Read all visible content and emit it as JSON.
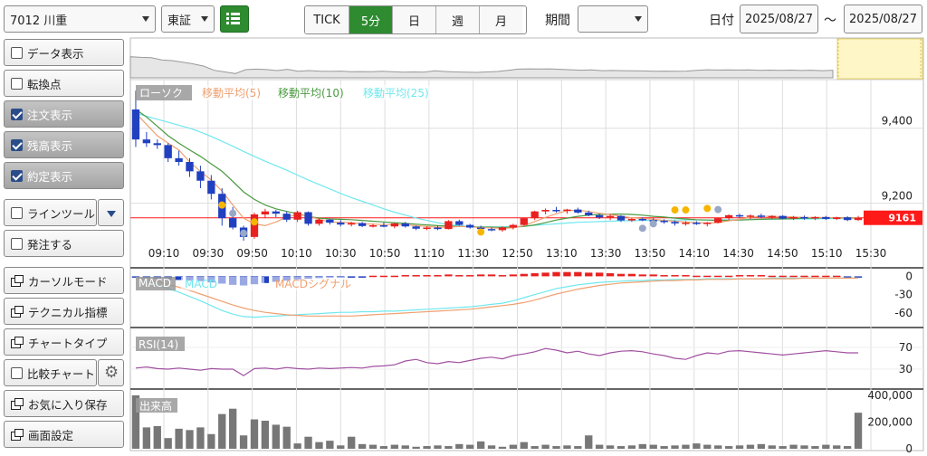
{
  "header": {
    "symbol": "7012 川重",
    "market": "東証",
    "menu_icon": "list-icon",
    "intervals": [
      "TICK",
      "5分",
      "日",
      "週",
      "月"
    ],
    "active_interval": "5分",
    "period_label": "期間",
    "period_value": "",
    "date_label": "日付",
    "date_from": "2025/08/27",
    "date_sep": "〜",
    "date_to": "2025/08/27"
  },
  "sidebar": {
    "items": [
      {
        "label": "データ表示",
        "type": "checkbox",
        "checked": false
      },
      {
        "label": "転換点",
        "type": "checkbox",
        "checked": false
      },
      {
        "label": "注文表示",
        "type": "checkbox",
        "checked": true
      },
      {
        "label": "残高表示",
        "type": "checkbox",
        "checked": true
      },
      {
        "label": "約定表示",
        "type": "checkbox",
        "checked": true
      },
      {
        "label": "ラインツール",
        "type": "checkbox",
        "checked": false,
        "sub": "chevron-down-icon"
      },
      {
        "label": "発注する",
        "type": "checkbox",
        "checked": false
      },
      {
        "label": "カーソルモード",
        "type": "window"
      },
      {
        "label": "テクニカル指標",
        "type": "window"
      },
      {
        "label": "チャートタイプ",
        "type": "window"
      },
      {
        "label": "比較チャート",
        "type": "checkbox",
        "checked": false,
        "sub": "gear-icon"
      },
      {
        "label": "お気に入り保存",
        "type": "window"
      },
      {
        "label": "画面設定",
        "type": "window"
      }
    ]
  },
  "chart_data": [
    {
      "type": "candlestick",
      "title": "",
      "interval": "5分",
      "legend": [
        {
          "name": "ローソク",
          "color": "#888888"
        },
        {
          "name": "移動平均(5)",
          "color": "#f0a070"
        },
        {
          "name": "移動平均(10)",
          "color": "#4a9a40"
        },
        {
          "name": "移動平均(25)",
          "color": "#70e8ee"
        }
      ],
      "x_ticks": [
        "09:10",
        "09:30",
        "09:50",
        "10:10",
        "10:30",
        "10:50",
        "11:10",
        "11:30",
        "12:50",
        "13:10",
        "13:30",
        "13:50",
        "14:10",
        "14:30",
        "14:50",
        "15:10",
        "15:30"
      ],
      "y_ticks": [
        "9,400",
        "9,200"
      ],
      "ylim": [
        9100,
        9520
      ],
      "last_price": "9161",
      "colors": {
        "up": "#e82020",
        "down": "#2040c0",
        "last": "#ff1a1a"
      },
      "candles": [
        [
          9450,
          9500,
          9350,
          9370
        ],
        [
          9370,
          9390,
          9350,
          9360
        ],
        [
          9360,
          9370,
          9345,
          9355
        ],
        [
          9355,
          9360,
          9310,
          9320
        ],
        [
          9320,
          9340,
          9300,
          9310
        ],
        [
          9310,
          9320,
          9270,
          9285
        ],
        [
          9285,
          9300,
          9240,
          9260
        ],
        [
          9260,
          9275,
          9210,
          9225
        ],
        [
          9225,
          9240,
          9140,
          9160
        ],
        [
          9160,
          9190,
          9130,
          9135
        ],
        [
          9135,
          9140,
          9100,
          9110
        ],
        [
          9110,
          9175,
          9105,
          9170
        ],
        [
          9170,
          9185,
          9160,
          9178
        ],
        [
          9178,
          9182,
          9163,
          9172
        ],
        [
          9172,
          9178,
          9150,
          9156
        ],
        [
          9156,
          9180,
          9150,
          9176
        ],
        [
          9176,
          9178,
          9140,
          9145
        ],
        [
          9145,
          9160,
          9140,
          9156
        ],
        [
          9156,
          9158,
          9143,
          9148
        ],
        [
          9148,
          9155,
          9138,
          9143
        ],
        [
          9143,
          9150,
          9138,
          9147
        ],
        [
          9147,
          9150,
          9136,
          9139
        ],
        [
          9139,
          9145,
          9135,
          9141
        ],
        [
          9141,
          9148,
          9136,
          9138
        ],
        [
          9138,
          9147,
          9133,
          9146
        ],
        [
          9146,
          9150,
          9135,
          9138
        ],
        [
          9138,
          9140,
          9128,
          9132
        ],
        [
          9132,
          9138,
          9128,
          9135
        ],
        [
          9135,
          9140,
          9128,
          9131
        ],
        [
          9131,
          9155,
          9130,
          9152
        ],
        [
          9152,
          9156,
          9140,
          9142
        ],
        [
          9142,
          9145,
          9132,
          9135
        ],
        [
          9135,
          9140,
          9128,
          9131
        ],
        [
          9131,
          9135,
          9125,
          9128
        ],
        [
          9128,
          9138,
          9124,
          9135
        ],
        [
          9135,
          9145,
          9130,
          9142
        ],
        [
          9142,
          9162,
          9140,
          9160
        ],
        [
          9160,
          9180,
          9155,
          9178
        ],
        [
          9178,
          9186,
          9170,
          9182
        ],
        [
          9182,
          9190,
          9175,
          9180
        ],
        [
          9180,
          9185,
          9172,
          9183
        ],
        [
          9183,
          9188,
          9172,
          9175
        ],
        [
          9175,
          9180,
          9165,
          9168
        ],
        [
          9168,
          9172,
          9158,
          9162
        ],
        [
          9162,
          9170,
          9155,
          9166
        ],
        [
          9166,
          9168,
          9150,
          9154
        ],
        [
          9154,
          9160,
          9150,
          9158
        ],
        [
          9158,
          9162,
          9152,
          9155
        ],
        [
          9155,
          9160,
          9149,
          9153
        ],
        [
          9153,
          9157,
          9145,
          9150
        ],
        [
          9150,
          9154,
          9140,
          9146
        ],
        [
          9146,
          9152,
          9140,
          9148
        ],
        [
          9148,
          9152,
          9142,
          9145
        ],
        [
          9145,
          9150,
          9138,
          9148
        ],
        [
          9148,
          9162,
          9146,
          9160
        ],
        [
          9160,
          9170,
          9155,
          9168
        ],
        [
          9168,
          9172,
          9160,
          9165
        ],
        [
          9165,
          9170,
          9158,
          9167
        ],
        [
          9167,
          9172,
          9160,
          9164
        ],
        [
          9164,
          9168,
          9158,
          9166
        ],
        [
          9166,
          9168,
          9157,
          9159
        ],
        [
          9159,
          9166,
          9155,
          9163
        ],
        [
          9163,
          9167,
          9156,
          9160
        ],
        [
          9160,
          9165,
          9155,
          9163
        ],
        [
          9163,
          9166,
          9155,
          9158
        ],
        [
          9158,
          9164,
          9155,
          9162
        ],
        [
          9162,
          9165,
          9152,
          9155
        ],
        [
          9155,
          9166,
          9153,
          9161
        ]
      ],
      "ma5": [
        9440,
        9410,
        9380,
        9360,
        9342,
        9310,
        9285,
        9262,
        9232,
        9195,
        9160,
        9145,
        9140,
        9150,
        9163,
        9170,
        9166,
        9157,
        9150,
        9149,
        9148,
        9145,
        9144,
        9143,
        9143,
        9142,
        9140,
        9138,
        9136,
        9136,
        9138,
        9137,
        9135,
        9134,
        9133,
        9134,
        9140,
        9151,
        9162,
        9172,
        9180,
        9181,
        9178,
        9173,
        9170,
        9165,
        9161,
        9159,
        9157,
        9154,
        9152,
        9150,
        9148,
        9147,
        9148,
        9153,
        9157,
        9162,
        9165,
        9165,
        9164,
        9163,
        9162,
        9162,
        9162,
        9161,
        9160,
        9160
      ],
      "ma10": [
        9450,
        9430,
        9405,
        9380,
        9360,
        9342,
        9325,
        9305,
        9285,
        9258,
        9230,
        9210,
        9195,
        9185,
        9178,
        9172,
        9165,
        9160,
        9158,
        9157,
        9156,
        9154,
        9152,
        9150,
        9148,
        9146,
        9144,
        9142,
        9140,
        9139,
        9138,
        9137,
        9136,
        9136,
        9135,
        9136,
        9138,
        9142,
        9148,
        9155,
        9160,
        9165,
        9168,
        9170,
        9171,
        9171,
        9170,
        9168,
        9165,
        9163,
        9160,
        9158,
        9156,
        9155,
        9154,
        9154,
        9155,
        9156,
        9157,
        9158,
        9158,
        9159,
        9160,
        9160,
        9161,
        9161,
        9161,
        9160
      ],
      "ma25": [
        9440,
        9432,
        9424,
        9416,
        9408,
        9400,
        9390,
        9378,
        9365,
        9352,
        9338,
        9325,
        9312,
        9300,
        9288,
        9275,
        9262,
        9250,
        9238,
        9226,
        9215,
        9205,
        9195,
        9185,
        9176,
        9168,
        9160,
        9154,
        9148,
        9143,
        9140,
        9138,
        9137,
        9137,
        9137,
        9138,
        9139,
        9141,
        9143,
        9145,
        9147,
        9149,
        9150,
        9151,
        9152,
        9153,
        9153,
        9154,
        9154,
        9154,
        9155,
        9155,
        9155,
        9155,
        9156,
        9156,
        9156,
        9157,
        9157,
        9157,
        9158,
        9158,
        9158,
        9158,
        9159,
        9159,
        9159,
        9159
      ],
      "execution_markers": [
        {
          "i": 8,
          "price": 9195,
          "color": "#f7b500"
        },
        {
          "i": 9,
          "price": 9173,
          "color": "#9aa8c8"
        },
        {
          "i": 10,
          "price": 9120,
          "color": "#9aa8c8"
        },
        {
          "i": 11,
          "price": 9150,
          "color": "#f7b500"
        },
        {
          "i": 32,
          "price": 9123,
          "color": "#f7b500"
        },
        {
          "i": 47,
          "price": 9133,
          "color": "#9aa8c8"
        },
        {
          "i": 48,
          "price": 9145,
          "color": "#9aa8c8"
        },
        {
          "i": 50,
          "price": 9182,
          "color": "#f7b500"
        },
        {
          "i": 51,
          "price": 9182,
          "color": "#f7b500"
        },
        {
          "i": 53,
          "price": 9186,
          "color": "#f7b500"
        },
        {
          "i": 54,
          "price": 9183,
          "color": "#9aa8c8"
        }
      ]
    },
    {
      "type": "bar",
      "title": "MACD",
      "legend": [
        {
          "name": "MACD",
          "color": "#70e8ee"
        },
        {
          "name": "MACDシグナル",
          "color": "#f0a070"
        }
      ],
      "y_ticks": [
        "0",
        "-30",
        "-60"
      ],
      "ylim": [
        -75,
        8
      ],
      "histogram": [
        -2,
        -3,
        -4,
        -5,
        -6,
        -7,
        -8,
        -10,
        -12,
        -14,
        -15,
        -13,
        -11,
        -9,
        -7,
        -5,
        -4,
        -3,
        -2,
        -2,
        -1,
        -1,
        1,
        1,
        1,
        2,
        2,
        2,
        2,
        3,
        2,
        2,
        3,
        3,
        2,
        3,
        4,
        5,
        6,
        7,
        7,
        7,
        6,
        6,
        5,
        4,
        4,
        3,
        3,
        2,
        2,
        2,
        1,
        1,
        1,
        1,
        2,
        2,
        2,
        1,
        1,
        1,
        1,
        1,
        1,
        1,
        -1,
        -2
      ],
      "macd": [
        -2,
        -8,
        -14,
        -20,
        -26,
        -33,
        -40,
        -48,
        -56,
        -62,
        -66,
        -67,
        -66,
        -65,
        -64,
        -63,
        -62,
        -61,
        -60,
        -59,
        -59,
        -58,
        -58,
        -57,
        -57,
        -56,
        -55,
        -54,
        -53,
        -52,
        -51,
        -50,
        -48,
        -46,
        -44,
        -40,
        -35,
        -30,
        -25,
        -20,
        -17,
        -14,
        -12,
        -10,
        -9,
        -8,
        -7,
        -7,
        -6,
        -6,
        -5,
        -5,
        -5,
        -4,
        -4,
        -4,
        -4,
        -4,
        -4,
        -3,
        -3,
        -3,
        -3,
        -3,
        -3,
        -3,
        -3,
        -3
      ],
      "signal": [
        -2,
        -5,
        -9,
        -13,
        -18,
        -23,
        -29,
        -35,
        -41,
        -47,
        -52,
        -56,
        -59,
        -61,
        -63,
        -64,
        -65,
        -65,
        -65,
        -65,
        -65,
        -64,
        -63,
        -62,
        -61,
        -60,
        -59,
        -58,
        -57,
        -56,
        -55,
        -54,
        -52,
        -50,
        -48,
        -46,
        -43,
        -39,
        -34,
        -29,
        -25,
        -21,
        -18,
        -15,
        -13,
        -11,
        -10,
        -9,
        -8,
        -7,
        -7,
        -6,
        -6,
        -5,
        -5,
        -5,
        -4,
        -4,
        -4,
        -4,
        -4,
        -4,
        -3,
        -3,
        -3,
        -3,
        -3,
        -3
      ]
    },
    {
      "type": "line",
      "title": "RSI(14)",
      "color": "#a050a0",
      "y_ticks": [
        "70",
        "30"
      ],
      "ylim": [
        0,
        100
      ],
      "values": [
        32,
        34,
        31,
        30,
        32,
        30,
        28,
        31,
        30,
        30,
        18,
        31,
        32,
        30,
        33,
        31,
        30,
        32,
        31,
        32,
        33,
        32,
        35,
        36,
        38,
        45,
        48,
        42,
        40,
        44,
        42,
        46,
        50,
        52,
        49,
        55,
        58,
        62,
        68,
        65,
        60,
        63,
        58,
        55,
        60,
        63,
        64,
        62,
        58,
        55,
        50,
        48,
        55,
        60,
        58,
        63,
        64,
        62,
        60,
        58,
        56,
        58,
        60,
        62,
        64,
        62,
        60,
        60
      ]
    },
    {
      "type": "bar",
      "title": "出来高",
      "color": "#777777",
      "y_ticks": [
        "400,000",
        "200,000",
        "0"
      ],
      "ylim": [
        0,
        420000
      ],
      "values": [
        400000,
        160000,
        170000,
        80000,
        150000,
        140000,
        160000,
        110000,
        260000,
        300000,
        100000,
        220000,
        210000,
        180000,
        165000,
        40000,
        90000,
        50000,
        60000,
        25000,
        90000,
        35000,
        30000,
        20000,
        30000,
        25000,
        15000,
        20000,
        25000,
        20000,
        35000,
        30000,
        55000,
        25000,
        15000,
        30000,
        50000,
        20000,
        30000,
        20000,
        25000,
        20000,
        100000,
        30000,
        25000,
        20000,
        25000,
        35000,
        30000,
        20000,
        25000,
        30000,
        40000,
        30000,
        25000,
        20000,
        25000,
        30000,
        35000,
        25000,
        20000,
        30000,
        25000,
        20000,
        30000,
        25000,
        20000,
        270000
      ]
    }
  ]
}
